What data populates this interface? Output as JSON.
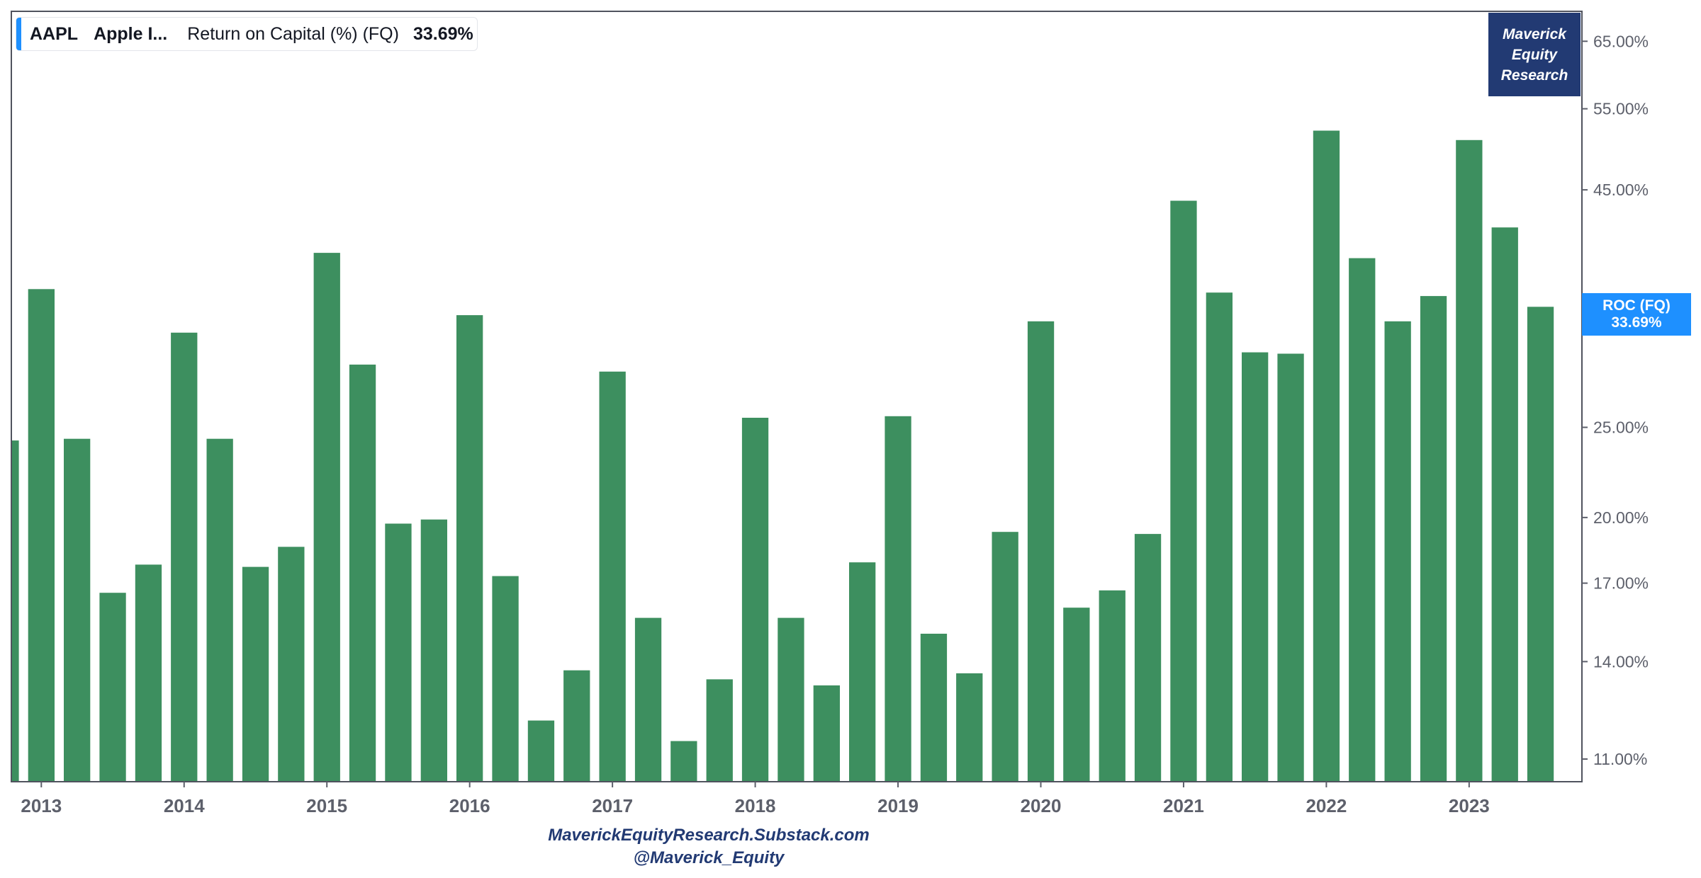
{
  "legend": {
    "ticker": "AAPL",
    "name": "Apple I...",
    "metric": "Return on Capital (%) (FQ)",
    "value": "33.69%"
  },
  "brand": {
    "line1": "Maverick",
    "line2": "Equity",
    "line3": "Research"
  },
  "price_tag": {
    "label": "ROC (FQ)",
    "value": "33.69%"
  },
  "footer": {
    "line1": "MaverickEquityResearch.Substack.com",
    "line2": "@Maverick_Equity"
  },
  "colors": {
    "bar": "#3d8f5f",
    "accent": "#1e90ff",
    "brand": "#223a73",
    "axis_text": "#5d606b"
  },
  "chart_data": {
    "type": "bar",
    "scale": "log",
    "ylim": [
      10.4,
      70
    ],
    "xlim": [
      2012.79,
      2023.79
    ],
    "x_ticks": [
      2013,
      2014,
      2015,
      2016,
      2017,
      2018,
      2019,
      2020,
      2021,
      2022,
      2023
    ],
    "x_tick_labels": [
      "2013",
      "2014",
      "2015",
      "2016",
      "2017",
      "2018",
      "2019",
      "2020",
      "2021",
      "2022",
      "2023"
    ],
    "y_ticks": [
      11,
      14,
      17,
      20,
      25,
      45,
      55,
      65
    ],
    "y_tick_labels": [
      "11.00%",
      "14.00%",
      "17.00%",
      "20.00%",
      "25.00%",
      "45.00%",
      "55.00%",
      "65.00%"
    ],
    "series": [
      {
        "x": [
          2012.75,
          2013.0,
          2013.25,
          2013.5,
          2013.75,
          2014.0,
          2014.25,
          2014.5,
          2014.75,
          2015.0,
          2015.25,
          2015.5,
          2015.75,
          2016.0,
          2016.25,
          2016.5,
          2016.75,
          2017.0,
          2017.25,
          2017.5,
          2017.75,
          2018.0,
          2018.25,
          2018.5,
          2018.75,
          2019.0,
          2019.25,
          2019.5,
          2019.75,
          2020.0,
          2020.25,
          2020.5,
          2020.75,
          2021.0,
          2021.25,
          2021.5,
          2021.75,
          2022.0,
          2022.25,
          2022.5,
          2022.75,
          2023.0,
          2023.25,
          2023.5
        ],
        "values": [
          24.2,
          35.2,
          24.3,
          16.6,
          17.8,
          31.6,
          24.3,
          17.7,
          18.6,
          38.5,
          29.2,
          19.7,
          19.9,
          33.0,
          17.3,
          12.1,
          13.7,
          28.7,
          15.6,
          11.5,
          13.4,
          25.6,
          15.6,
          13.2,
          17.9,
          25.7,
          15.0,
          13.6,
          19.3,
          32.5,
          16.0,
          16.7,
          19.2,
          43.8,
          34.9,
          30.1,
          30.0,
          52.1,
          38.0,
          32.5,
          34.6,
          50.9,
          41.0,
          33.69
        ]
      }
    ]
  }
}
